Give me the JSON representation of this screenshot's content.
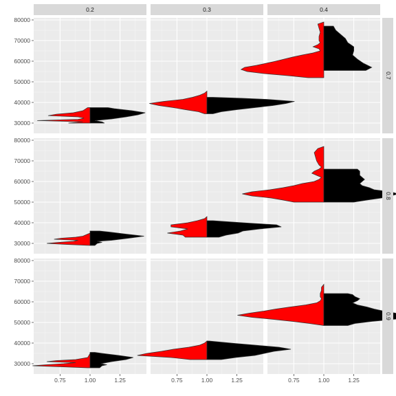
{
  "chart_data": {
    "type": "split-violin",
    "facet_columns": [
      "0.2",
      "0.3",
      "0.4"
    ],
    "facet_rows": [
      "0.7",
      "0.8",
      "0.9"
    ],
    "x_ticks": [
      0.75,
      1.0,
      1.25
    ],
    "x_tick_labels": [
      "0.75",
      "1.00",
      "1.25"
    ],
    "xlim": [
      0.53,
      1.47
    ],
    "y_ticks": [
      30000,
      40000,
      50000,
      60000,
      70000,
      80000
    ],
    "y_tick_labels": [
      "30000",
      "40000",
      "50000",
      "60000",
      "70000",
      "80000"
    ],
    "ylim": [
      25000,
      81000
    ],
    "violin_center_x": 1.0,
    "left_half_color": "#ff0000",
    "right_half_color": "#000000",
    "outline_color": "#333333",
    "panel_background": "#ebebeb",
    "strip_background": "#d9d9d9",
    "grid_major_color": "#ffffff",
    "panels": [
      {
        "row": 0,
        "col": 0,
        "left": [
          [
            30000,
            0.18
          ],
          [
            30600,
            0.06
          ],
          [
            31200,
            0.44
          ],
          [
            31800,
            0.1
          ],
          [
            32400,
            0.05
          ],
          [
            33000,
            0.1
          ],
          [
            33600,
            0.35
          ],
          [
            34300,
            0.28
          ],
          [
            35000,
            0.14
          ],
          [
            36000,
            0.06
          ],
          [
            37500,
            0.02
          ]
        ],
        "right": [
          [
            30000,
            0.12
          ],
          [
            30600,
            0.1
          ],
          [
            31200,
            0.04
          ],
          [
            32000,
            0.18
          ],
          [
            33000,
            0.3
          ],
          [
            34000,
            0.4
          ],
          [
            35000,
            0.46
          ],
          [
            36000,
            0.35
          ],
          [
            37000,
            0.2
          ],
          [
            37500,
            0.15
          ]
        ]
      },
      {
        "row": 0,
        "col": 1,
        "left": [
          [
            34500,
            0.02
          ],
          [
            35500,
            0.07
          ],
          [
            36500,
            0.18
          ],
          [
            37500,
            0.28
          ],
          [
            38500,
            0.4
          ],
          [
            39500,
            0.48
          ],
          [
            40500,
            0.36
          ],
          [
            41500,
            0.2
          ],
          [
            42500,
            0.12
          ],
          [
            43500,
            0.06
          ],
          [
            44500,
            0.02
          ],
          [
            45500,
            0.0
          ]
        ],
        "right": [
          [
            34500,
            0.05
          ],
          [
            35500,
            0.12
          ],
          [
            36500,
            0.25
          ],
          [
            37500,
            0.4
          ],
          [
            38500,
            0.55
          ],
          [
            39500,
            0.66
          ],
          [
            40500,
            0.73
          ],
          [
            41500,
            0.5
          ],
          [
            42000,
            0.3
          ],
          [
            42500,
            0.05
          ]
        ]
      },
      {
        "row": 0,
        "col": 2,
        "left": [
          [
            52000,
            0.13
          ],
          [
            53000,
            0.3
          ],
          [
            54000,
            0.5
          ],
          [
            55000,
            0.64
          ],
          [
            56000,
            0.69
          ],
          [
            57000,
            0.66
          ],
          [
            58000,
            0.56
          ],
          [
            59000,
            0.48
          ],
          [
            60000,
            0.4
          ],
          [
            61000,
            0.33
          ],
          [
            62000,
            0.26
          ],
          [
            63000,
            0.18
          ],
          [
            64000,
            0.09
          ],
          [
            65000,
            0.03
          ],
          [
            66000,
            0.04
          ],
          [
            67000,
            0.09
          ],
          [
            68000,
            0.05
          ],
          [
            69000,
            0.03
          ],
          [
            70000,
            0.04
          ],
          [
            72000,
            0.04
          ],
          [
            74000,
            0.03
          ],
          [
            76000,
            0.04
          ],
          [
            78000,
            0.05
          ],
          [
            79000,
            0.0
          ]
        ],
        "right": [
          [
            55500,
            0.35
          ],
          [
            57000,
            0.4
          ],
          [
            59000,
            0.33
          ],
          [
            61000,
            0.28
          ],
          [
            63000,
            0.24
          ],
          [
            65000,
            0.25
          ],
          [
            67000,
            0.25
          ],
          [
            69000,
            0.2
          ],
          [
            71000,
            0.18
          ],
          [
            73000,
            0.14
          ],
          [
            75000,
            0.1
          ],
          [
            77000,
            0.08
          ]
        ]
      },
      {
        "row": 1,
        "col": 0,
        "left": [
          [
            29000,
            0.0
          ],
          [
            29500,
            0.2
          ],
          [
            30000,
            0.36
          ],
          [
            30500,
            0.26
          ],
          [
            31000,
            0.14
          ],
          [
            31500,
            0.1
          ],
          [
            32000,
            0.3
          ],
          [
            32500,
            0.24
          ],
          [
            33000,
            0.12
          ],
          [
            33500,
            0.06
          ],
          [
            34500,
            0.02
          ],
          [
            35000,
            0.0
          ]
        ],
        "right": [
          [
            29000,
            0.04
          ],
          [
            30000,
            0.06
          ],
          [
            30500,
            0.1
          ],
          [
            31000,
            0.06
          ],
          [
            31500,
            0.18
          ],
          [
            32500,
            0.32
          ],
          [
            33500,
            0.45
          ],
          [
            34500,
            0.3
          ],
          [
            35500,
            0.16
          ],
          [
            36000,
            0.08
          ]
        ]
      },
      {
        "row": 1,
        "col": 1,
        "left": [
          [
            33000,
            0.18
          ],
          [
            34000,
            0.2
          ],
          [
            35000,
            0.33
          ],
          [
            36000,
            0.22
          ],
          [
            37000,
            0.16
          ],
          [
            38000,
            0.3
          ],
          [
            39000,
            0.3
          ],
          [
            40000,
            0.16
          ],
          [
            41000,
            0.08
          ],
          [
            42000,
            0.02
          ],
          [
            43000,
            0.0
          ]
        ],
        "right": [
          [
            33000,
            0.1
          ],
          [
            34000,
            0.16
          ],
          [
            35000,
            0.26
          ],
          [
            36000,
            0.3
          ],
          [
            37000,
            0.44
          ],
          [
            38000,
            0.62
          ],
          [
            39000,
            0.58
          ],
          [
            40000,
            0.3
          ],
          [
            41000,
            0.05
          ]
        ]
      },
      {
        "row": 1,
        "col": 2,
        "left": [
          [
            50000,
            0.25
          ],
          [
            51000,
            0.34
          ],
          [
            52000,
            0.44
          ],
          [
            53000,
            0.6
          ],
          [
            54000,
            0.68
          ],
          [
            55000,
            0.6
          ],
          [
            56000,
            0.45
          ],
          [
            57000,
            0.34
          ],
          [
            58000,
            0.25
          ],
          [
            59000,
            0.18
          ],
          [
            60000,
            0.08
          ],
          [
            61000,
            0.04
          ],
          [
            62000,
            0.02
          ],
          [
            63000,
            0.06
          ],
          [
            64000,
            0.1
          ],
          [
            65000,
            0.08
          ],
          [
            66000,
            0.04
          ],
          [
            67000,
            0.02
          ],
          [
            68000,
            0.04
          ],
          [
            70000,
            0.06
          ],
          [
            72000,
            0.07
          ],
          [
            74000,
            0.08
          ],
          [
            76000,
            0.05
          ],
          [
            77000,
            0.0
          ]
        ],
        "right": [
          [
            50000,
            0.25
          ],
          [
            51000,
            0.36
          ],
          [
            52000,
            0.48
          ],
          [
            53000,
            0.56
          ],
          [
            54000,
            0.62
          ],
          [
            55000,
            0.56
          ],
          [
            56000,
            0.42
          ],
          [
            57000,
            0.38
          ],
          [
            58000,
            0.32
          ],
          [
            59000,
            0.3
          ],
          [
            60000,
            0.32
          ],
          [
            61000,
            0.34
          ],
          [
            62000,
            0.32
          ],
          [
            63000,
            0.3
          ],
          [
            64000,
            0.3
          ],
          [
            65000,
            0.3
          ],
          [
            66000,
            0.28
          ]
        ]
      },
      {
        "row": 2,
        "col": 0,
        "left": [
          [
            28000,
            0.02
          ],
          [
            28500,
            0.24
          ],
          [
            29000,
            0.48
          ],
          [
            29500,
            0.36
          ],
          [
            30000,
            0.22
          ],
          [
            30500,
            0.12
          ],
          [
            31000,
            0.36
          ],
          [
            31500,
            0.28
          ],
          [
            32000,
            0.12
          ],
          [
            33000,
            0.02
          ],
          [
            34000,
            0.01
          ],
          [
            35000,
            0.0
          ]
        ],
        "right": [
          [
            28000,
            0.08
          ],
          [
            29000,
            0.1
          ],
          [
            29500,
            0.14
          ],
          [
            30000,
            0.09
          ],
          [
            31000,
            0.18
          ],
          [
            32000,
            0.3
          ],
          [
            33000,
            0.36
          ],
          [
            34000,
            0.24
          ],
          [
            35000,
            0.1
          ],
          [
            35500,
            0.04
          ]
        ]
      },
      {
        "row": 2,
        "col": 1,
        "left": [
          [
            32000,
            0.14
          ],
          [
            33000,
            0.3
          ],
          [
            34000,
            0.58
          ],
          [
            35000,
            0.5
          ],
          [
            36000,
            0.38
          ],
          [
            37000,
            0.28
          ],
          [
            38000,
            0.15
          ],
          [
            39000,
            0.06
          ],
          [
            40000,
            0.02
          ],
          [
            41000,
            0.0
          ]
        ],
        "right": [
          [
            32000,
            0.12
          ],
          [
            33000,
            0.24
          ],
          [
            34000,
            0.4
          ],
          [
            35000,
            0.48
          ],
          [
            36000,
            0.56
          ],
          [
            37000,
            0.7
          ],
          [
            38000,
            0.6
          ],
          [
            39000,
            0.4
          ],
          [
            40000,
            0.2
          ],
          [
            41000,
            0.02
          ]
        ]
      },
      {
        "row": 2,
        "col": 2,
        "left": [
          [
            48500,
            0.0
          ],
          [
            49500,
            0.12
          ],
          [
            50500,
            0.26
          ],
          [
            51500,
            0.42
          ],
          [
            52500,
            0.6
          ],
          [
            53500,
            0.72
          ],
          [
            54500,
            0.62
          ],
          [
            55500,
            0.5
          ],
          [
            56500,
            0.4
          ],
          [
            57500,
            0.28
          ],
          [
            58500,
            0.15
          ],
          [
            59500,
            0.06
          ],
          [
            60500,
            0.03
          ],
          [
            61500,
            0.02
          ],
          [
            62500,
            0.03
          ],
          [
            64000,
            0.03
          ],
          [
            65500,
            0.02
          ],
          [
            67000,
            0.02
          ],
          [
            68500,
            0.0
          ]
        ],
        "right": [
          [
            48500,
            0.2
          ],
          [
            49500,
            0.26
          ],
          [
            50500,
            0.4
          ],
          [
            51500,
            0.58
          ],
          [
            52500,
            0.76
          ],
          [
            53500,
            0.72
          ],
          [
            54500,
            0.6
          ],
          [
            55500,
            0.5
          ],
          [
            56500,
            0.42
          ],
          [
            57500,
            0.36
          ],
          [
            58500,
            0.28
          ],
          [
            59500,
            0.24
          ],
          [
            60500,
            0.28
          ],
          [
            61500,
            0.3
          ],
          [
            62500,
            0.26
          ],
          [
            63500,
            0.24
          ],
          [
            64000,
            0.2
          ]
        ]
      }
    ]
  }
}
